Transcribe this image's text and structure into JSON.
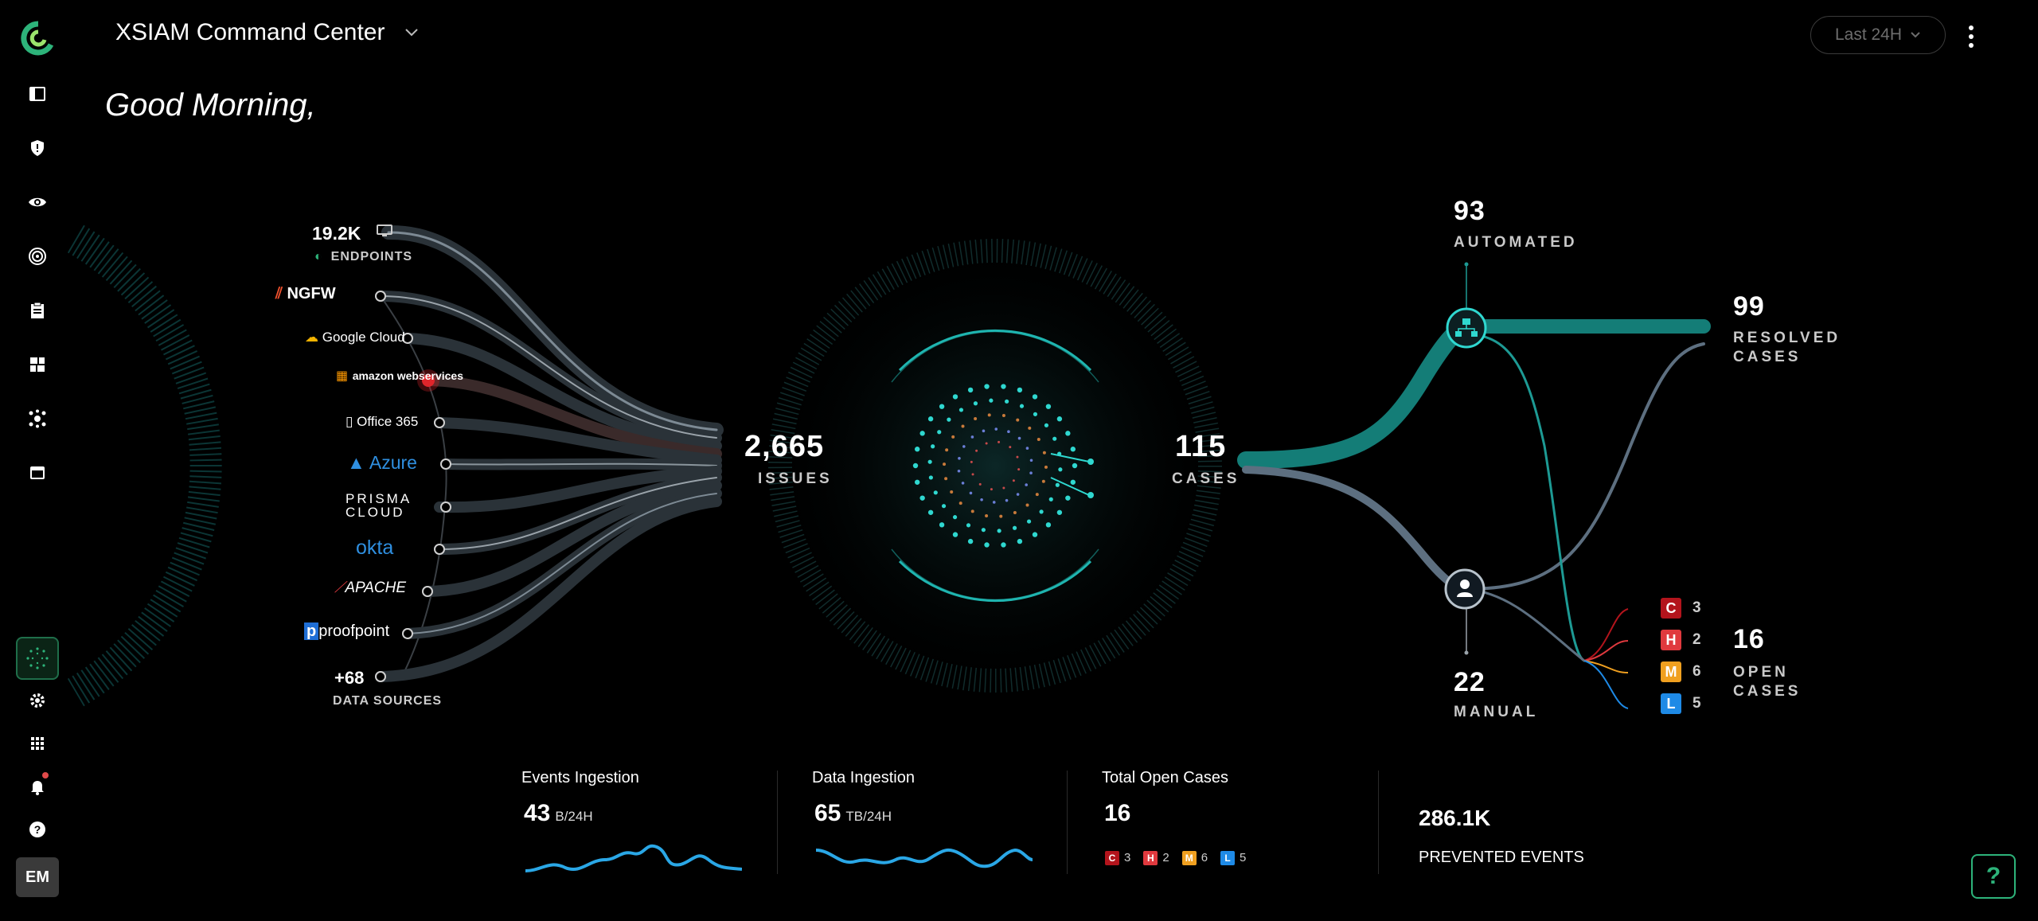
{
  "header": {
    "title": "XSIAM Command Center",
    "greeting": "Good Morning,",
    "time_range": "Last 24H"
  },
  "sidebar": {
    "items": [
      "dashboard-icon",
      "shield-icon",
      "eye-icon",
      "target-icon",
      "clipboard-icon",
      "widgets-icon",
      "network-icon",
      "inbox-icon"
    ],
    "bottom": [
      "settings-icon",
      "apps-grid-icon",
      "bell-icon",
      "help-icon"
    ],
    "avatar_initials": "EM"
  },
  "sources": {
    "endpoints_count": "19.2K",
    "endpoints_label": "ENDPOINTS",
    "items": [
      "NGFW",
      "Google Cloud",
      "amazon webservices",
      "Office 365",
      "Azure",
      "PRISMA CLOUD",
      "okta",
      "APACHE",
      "proofpoint"
    ],
    "more_count": "+68",
    "more_label": "DATA SOURCES"
  },
  "center": {
    "issues_value": "2,665",
    "issues_label": "ISSUES",
    "cases_value": "115",
    "cases_label": "CASES"
  },
  "outcomes": {
    "automated_value": "93",
    "automated_label": "AUTOMATED",
    "manual_value": "22",
    "manual_label": "MANUAL",
    "resolved_value": "99",
    "resolved_label_1": "RESOLVED",
    "resolved_label_2": "CASES",
    "open_value": "16",
    "open_label_1": "OPEN",
    "open_label_2": "CASES",
    "severity": [
      {
        "letter": "C",
        "count": "3",
        "color": "#b3141c"
      },
      {
        "letter": "H",
        "count": "2",
        "color": "#e0393e"
      },
      {
        "letter": "M",
        "count": "6",
        "color": "#f0a020"
      },
      {
        "letter": "L",
        "count": "5",
        "color": "#1e8ae6"
      }
    ]
  },
  "cards": {
    "events": {
      "title": "Events Ingestion",
      "value": "43",
      "unit": "B/24H"
    },
    "data": {
      "title": "Data Ingestion",
      "value": "65",
      "unit": "TB/24H"
    },
    "open_cases": {
      "title": "Total Open Cases",
      "value": "16"
    },
    "prevented": {
      "value": "286.1K",
      "label": "PREVENTED EVENTS"
    }
  },
  "colors": {
    "teal": "#1d9a94",
    "accent_green": "#2db37a"
  }
}
